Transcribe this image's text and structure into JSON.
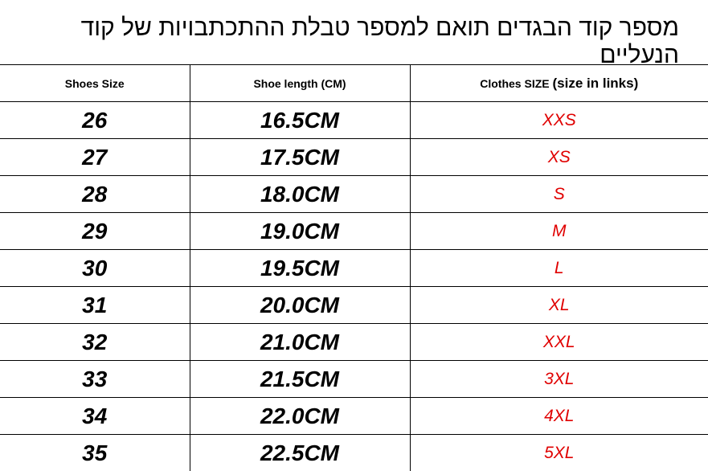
{
  "title": "מספר קוד הבגדים תואם למספר טבלת ההתכתבויות של קוד הנעליים",
  "headers": {
    "shoes_size": "Shoes Size",
    "shoe_length": "Shoe length (CM)",
    "clothes_size": "Clothes SIZE",
    "clothes_note": "(size in links)"
  },
  "rows": [
    {
      "shoe": "26",
      "length": "16.5CM",
      "clothes": "XXS"
    },
    {
      "shoe": "27",
      "length": "17.5CM",
      "clothes": "XS"
    },
    {
      "shoe": "28",
      "length": "18.0CM",
      "clothes": "S"
    },
    {
      "shoe": "29",
      "length": "19.0CM",
      "clothes": "M"
    },
    {
      "shoe": "30",
      "length": "19.5CM",
      "clothes": "L"
    },
    {
      "shoe": "31",
      "length": "20.0CM",
      "clothes": "XL"
    },
    {
      "shoe": "32",
      "length": "21.0CM",
      "clothes": "XXL"
    },
    {
      "shoe": "33",
      "length": "21.5CM",
      "clothes": "3XL"
    },
    {
      "shoe": "34",
      "length": "22.0CM",
      "clothes": "4XL"
    },
    {
      "shoe": "35",
      "length": "22.5CM",
      "clothes": "5XL"
    }
  ],
  "colors": {
    "clothes_text": "#e00000"
  }
}
